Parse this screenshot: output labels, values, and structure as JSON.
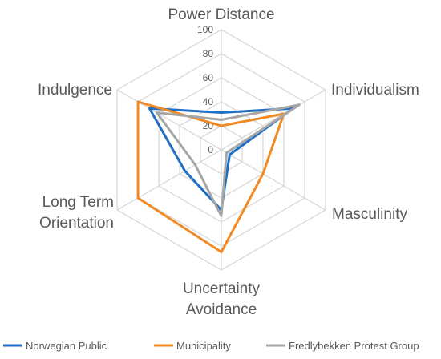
{
  "chart_data": {
    "type": "radar",
    "title": "",
    "axes": [
      [
        "Power Distance"
      ],
      [
        "Individualism"
      ],
      [
        "Masculinity"
      ],
      [
        "Uncertainty",
        "Avoidance"
      ],
      [
        "Long Term",
        "Orientation"
      ],
      [
        "Indulgence"
      ]
    ],
    "categories": [
      "Power Distance",
      "Individualism",
      "Masculinity",
      "Uncertainty Avoidance",
      "Long Term Orientation",
      "Indulgence"
    ],
    "r_ticks": [
      0,
      20,
      40,
      60,
      80,
      100
    ],
    "rlim": [
      0,
      100
    ],
    "grid": true,
    "legend_position": "bottom",
    "series": [
      {
        "name": "Norwegian Public",
        "color": "#1f6fc5",
        "values": [
          31,
          69,
          8,
          50,
          35,
          69
        ]
      },
      {
        "name": "Municipality",
        "color": "#f08a24",
        "values": [
          20,
          60,
          40,
          85,
          80,
          80
        ]
      },
      {
        "name": "Fredlybekken Protest Group",
        "color": "#a6a6a6",
        "values": [
          25,
          75,
          5,
          55,
          25,
          62
        ]
      }
    ]
  }
}
